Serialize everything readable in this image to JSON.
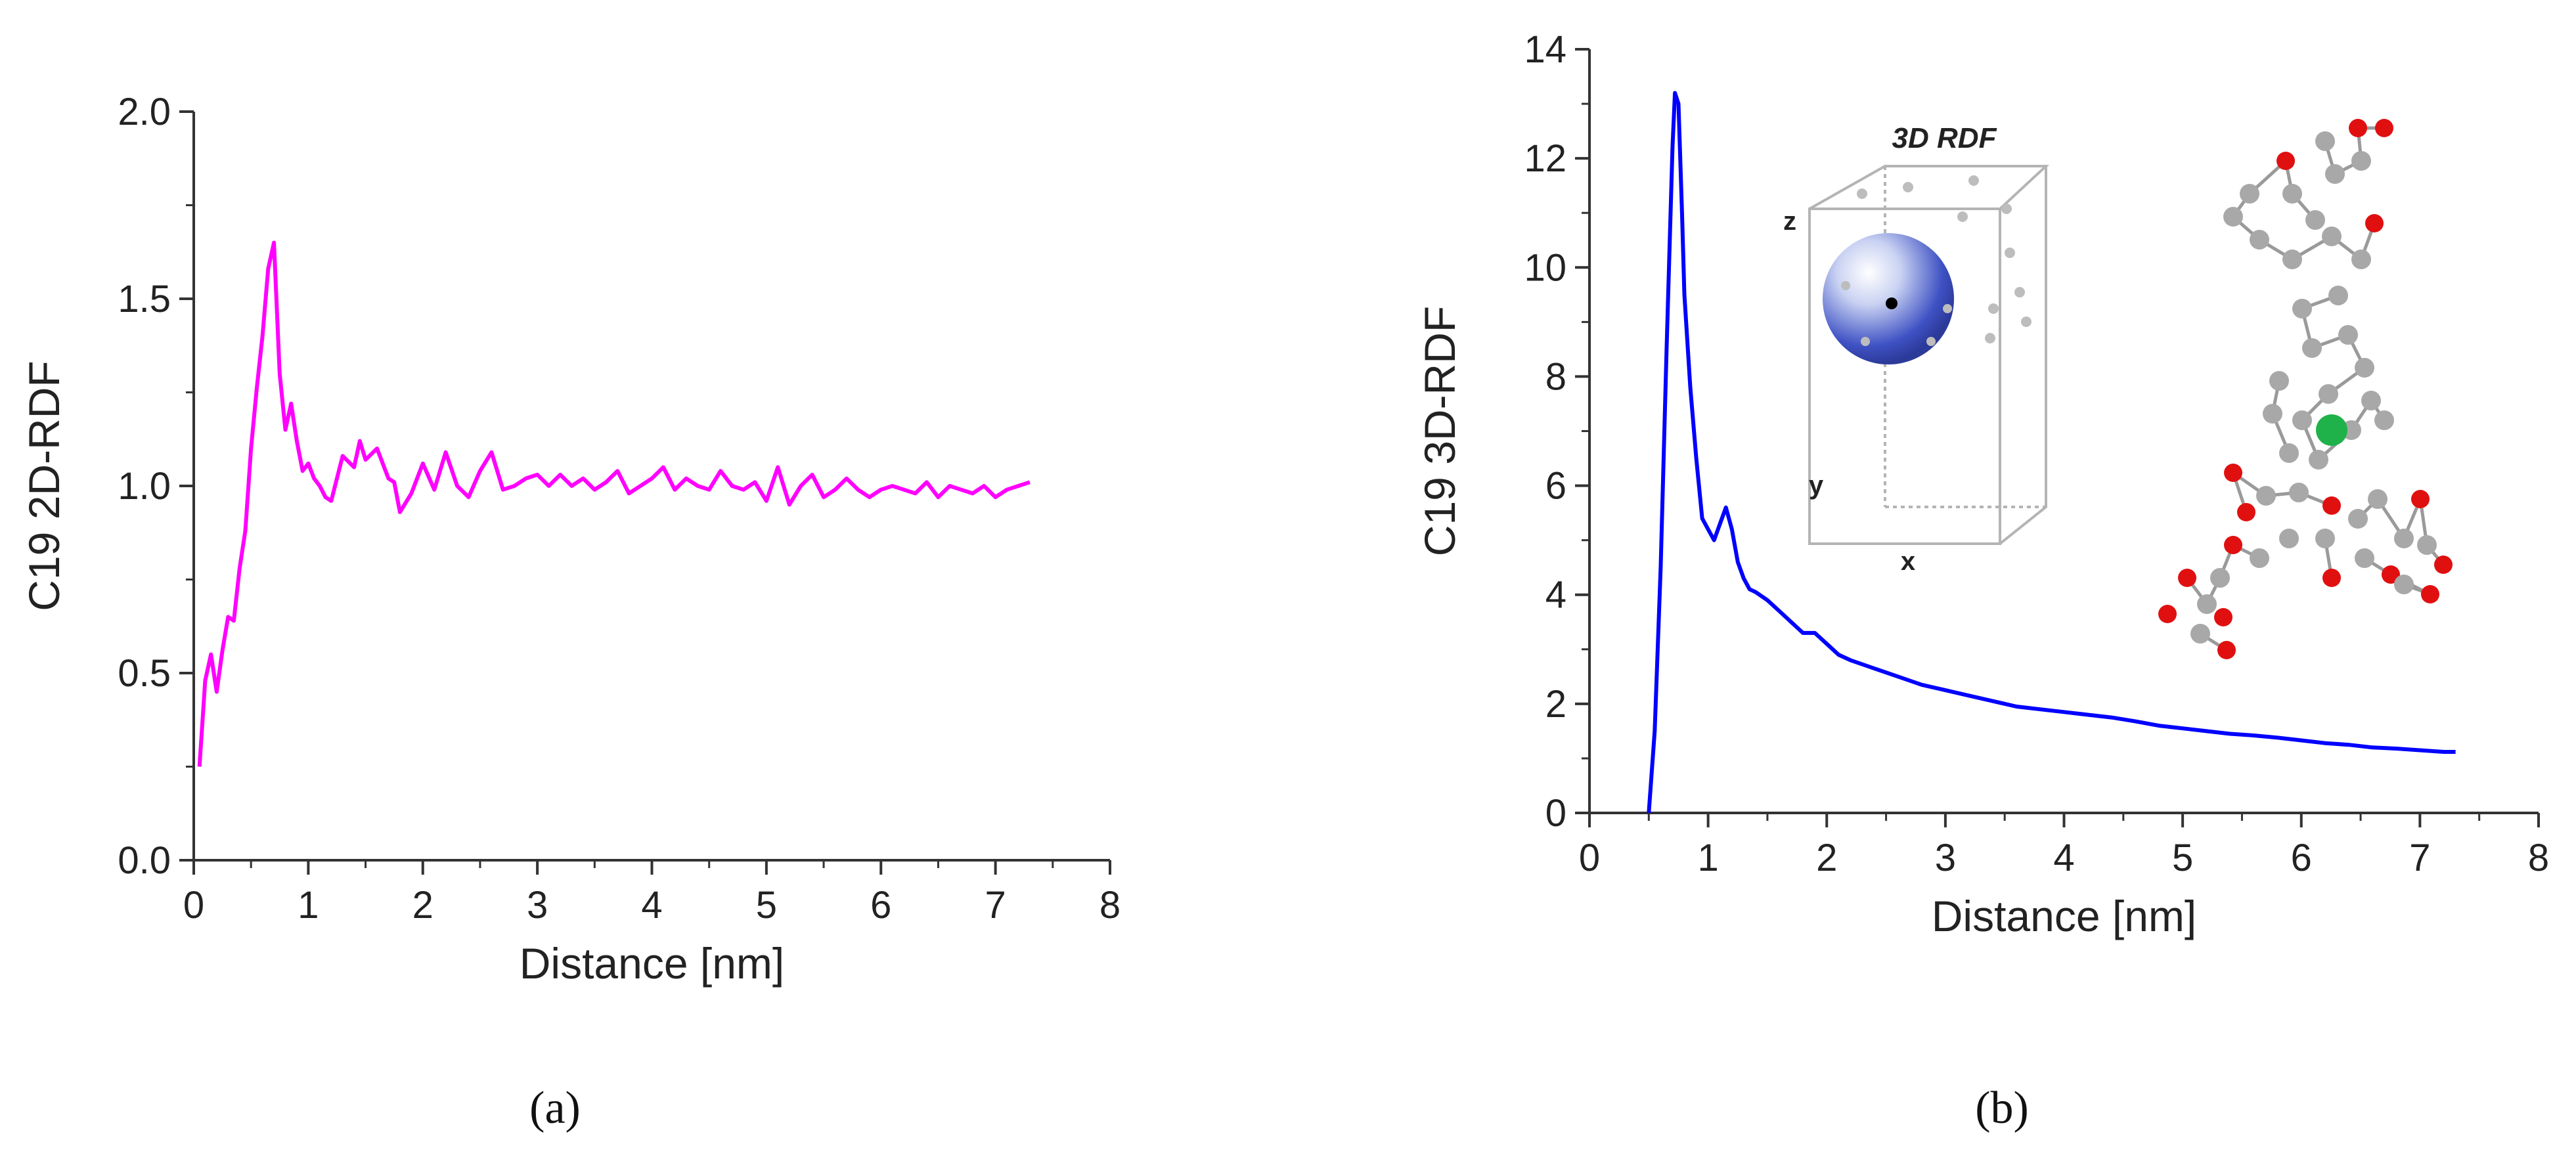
{
  "chart_data": [
    {
      "panel": "a",
      "panel_label": "(a)",
      "type": "line",
      "xlabel": "Distance [nm]",
      "ylabel": "C19 2D-RDF",
      "xlim": [
        0,
        8
      ],
      "ylim": [
        0,
        2
      ],
      "xticks": [
        "0",
        "1",
        "2",
        "3",
        "4",
        "5",
        "6",
        "7",
        "8"
      ],
      "yticks": [
        "0.0",
        "0.5",
        "1.0",
        "1.5",
        "2.0"
      ],
      "color": "#ff00ff",
      "series": [
        {
          "name": "C19 2D-RDF",
          "x": [
            0.05,
            0.1,
            0.15,
            0.2,
            0.25,
            0.3,
            0.35,
            0.4,
            0.45,
            0.5,
            0.55,
            0.6,
            0.65,
            0.7,
            0.75,
            0.8,
            0.85,
            0.9,
            0.95,
            1.0,
            1.05,
            1.1,
            1.15,
            1.2,
            1.3,
            1.4,
            1.45,
            1.5,
            1.6,
            1.7,
            1.75,
            1.8,
            1.9,
            2.0,
            2.1,
            2.2,
            2.3,
            2.4,
            2.5,
            2.6,
            2.7,
            2.8,
            2.9,
            3.0,
            3.1,
            3.2,
            3.3,
            3.4,
            3.5,
            3.6,
            3.7,
            3.8,
            3.9,
            4.0,
            4.1,
            4.2,
            4.3,
            4.4,
            4.5,
            4.6,
            4.7,
            4.8,
            4.9,
            5.0,
            5.1,
            5.2,
            5.3,
            5.4,
            5.5,
            5.6,
            5.7,
            5.8,
            5.9,
            6.0,
            6.1,
            6.2,
            6.3,
            6.4,
            6.5,
            6.6,
            6.7,
            6.8,
            6.9,
            7.0,
            7.1,
            7.2,
            7.3
          ],
          "y": [
            0.25,
            0.48,
            0.55,
            0.45,
            0.56,
            0.65,
            0.64,
            0.78,
            0.88,
            1.1,
            1.26,
            1.4,
            1.58,
            1.65,
            1.3,
            1.15,
            1.22,
            1.12,
            1.04,
            1.06,
            1.02,
            1.0,
            0.97,
            0.96,
            1.08,
            1.05,
            1.12,
            1.07,
            1.1,
            1.02,
            1.01,
            0.93,
            0.98,
            1.06,
            0.99,
            1.09,
            1.0,
            0.97,
            1.04,
            1.09,
            0.99,
            1.0,
            1.02,
            1.03,
            1.0,
            1.03,
            1.0,
            1.02,
            0.99,
            1.01,
            1.04,
            0.98,
            1.0,
            1.02,
            1.05,
            0.99,
            1.02,
            1.0,
            0.99,
            1.04,
            1.0,
            0.99,
            1.01,
            0.96,
            1.05,
            0.95,
            1.0,
            1.03,
            0.97,
            0.99,
            1.02,
            0.99,
            0.97,
            0.99,
            1.0,
            0.99,
            0.98,
            1.01,
            0.97,
            1.0,
            0.99,
            0.98,
            1.0,
            0.97,
            0.99,
            1.0,
            1.01
          ]
        }
      ]
    },
    {
      "panel": "b",
      "panel_label": "(b)",
      "type": "line",
      "xlabel": "Distance [nm]",
      "ylabel": "C19 3D-RDF",
      "xlim": [
        0,
        8
      ],
      "ylim": [
        0,
        14
      ],
      "xticks": [
        "0",
        "1",
        "2",
        "3",
        "4",
        "5",
        "6",
        "7",
        "8"
      ],
      "yticks": [
        "0",
        "2",
        "4",
        "6",
        "8",
        "10",
        "12",
        "14"
      ],
      "color": "#0000ff",
      "series": [
        {
          "name": "C19 3D-RDF",
          "x": [
            0.5,
            0.55,
            0.6,
            0.65,
            0.7,
            0.72,
            0.75,
            0.78,
            0.8,
            0.85,
            0.9,
            0.95,
            1.0,
            1.05,
            1.1,
            1.15,
            1.2,
            1.25,
            1.3,
            1.35,
            1.4,
            1.5,
            1.6,
            1.7,
            1.8,
            1.9,
            2.0,
            2.1,
            2.2,
            2.4,
            2.6,
            2.8,
            3.0,
            3.2,
            3.4,
            3.6,
            3.8,
            4.0,
            4.2,
            4.4,
            4.6,
            4.8,
            5.0,
            5.2,
            5.4,
            5.6,
            5.8,
            6.0,
            6.2,
            6.4,
            6.6,
            6.8,
            7.0,
            7.2,
            7.3
          ],
          "y": [
            0.0,
            1.5,
            4.5,
            8.5,
            12.2,
            13.2,
            13.0,
            11.0,
            9.5,
            7.8,
            6.5,
            5.4,
            5.2,
            5.0,
            5.3,
            5.6,
            5.2,
            4.6,
            4.3,
            4.1,
            4.05,
            3.9,
            3.7,
            3.5,
            3.3,
            3.3,
            3.1,
            2.9,
            2.8,
            2.65,
            2.5,
            2.35,
            2.25,
            2.15,
            2.05,
            1.95,
            1.9,
            1.85,
            1.8,
            1.75,
            1.68,
            1.6,
            1.55,
            1.5,
            1.45,
            1.42,
            1.38,
            1.33,
            1.28,
            1.25,
            1.2,
            1.18,
            1.15,
            1.12,
            1.12
          ]
        }
      ],
      "inset": {
        "title": "3D RDF",
        "axis_labels": {
          "x": "x",
          "y": "y",
          "z": "z"
        }
      }
    }
  ]
}
